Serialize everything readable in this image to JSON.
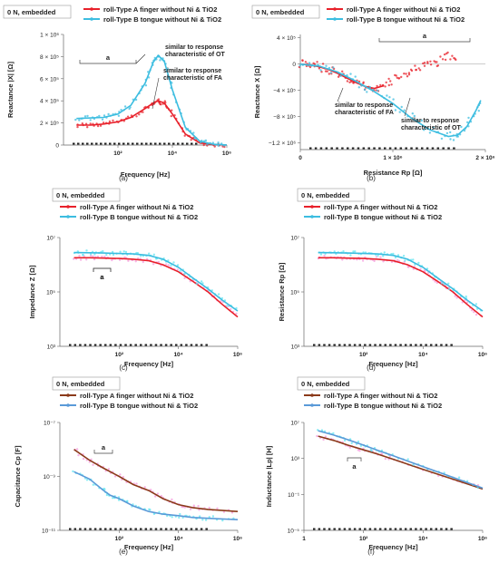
{
  "figure": {
    "panel_labels": [
      "(a)",
      "(b)",
      "(c)",
      "(d)",
      "(e)",
      "(f)"
    ],
    "embedded_tag": "0 N, embedded",
    "colors": {
      "type_a": "#e8202a",
      "type_b": "#3cbde0",
      "type_a_dark": "#8b3a1a",
      "type_b_dark": "#5a9ad8",
      "pink_cloud": "#f59adc",
      "cyan_cloud": "#63e6f0"
    }
  },
  "chart_data": [
    {
      "panel": "(a)",
      "type": "line",
      "scale": {
        "x": "log",
        "y": "linear"
      },
      "xlabel": "Frequency  [Hz]",
      "ylabel": "Reactance  |X|  [Ω]",
      "xticks": [
        {
          "v": 100,
          "label": "10²"
        },
        {
          "v": 10000,
          "label": "10⁴"
        },
        {
          "v": 1000000,
          "label": "10⁶"
        }
      ],
      "yticks": [
        {
          "v": 0,
          "label": "0"
        },
        {
          "v": 200000,
          "label": "2 × 10⁵"
        },
        {
          "v": 400000,
          "label": "4 × 10⁵"
        },
        {
          "v": 600000,
          "label": "6 × 10⁵"
        },
        {
          "v": 800000,
          "label": "8 × 10⁵"
        },
        {
          "v": 1000000,
          "label": "1 × 10⁶"
        }
      ],
      "xlim": [
        1,
        1000000
      ],
      "ylim": [
        0,
        1000000
      ],
      "legend": [
        "roll-Type A finger without Ni & TiO2",
        "roll-Type B tongue without Ni & TiO2"
      ],
      "series": [
        {
          "name": "roll-Type A finger without Ni & TiO2",
          "color": "#e8202a",
          "x": [
            3,
            10,
            30,
            100,
            300,
            1000,
            2000,
            3000,
            5000,
            10000,
            30000,
            100000,
            300000,
            1000000
          ],
          "y": [
            180000,
            180000,
            190000,
            210000,
            250000,
            330000,
            380000,
            400000,
            380000,
            280000,
            100000,
            20000,
            5000,
            1000
          ]
        },
        {
          "name": "roll-Type B tongue without Ni & TiO2",
          "color": "#3cbde0",
          "x": [
            3,
            10,
            30,
            100,
            300,
            1000,
            2000,
            3000,
            5000,
            10000,
            30000,
            100000,
            300000,
            1000000
          ],
          "y": [
            240000,
            245000,
            250000,
            280000,
            360000,
            560000,
            750000,
            810000,
            760000,
            500000,
            160000,
            35000,
            8000,
            1000
          ]
        }
      ],
      "annotations": [
        "a",
        "similar to response characteristic of OT",
        "similar to response characteristic  of FA"
      ]
    },
    {
      "panel": "(b)",
      "type": "scatter",
      "scale": {
        "x": "linear",
        "y": "linear"
      },
      "xlabel": "Resistance  Rp  [Ω]",
      "ylabel": "Reactance  X  [Ω]",
      "xticks": [
        {
          "v": 0,
          "label": "0"
        },
        {
          "v": 1000000,
          "label": "1 × 10⁶"
        },
        {
          "v": 2000000,
          "label": "2 × 10⁶"
        }
      ],
      "yticks": [
        {
          "v": 400000,
          "label": "4 × 10⁵"
        },
        {
          "v": 0,
          "label": "0"
        },
        {
          "v": -400000,
          "label": "−4 × 10⁵"
        },
        {
          "v": -800000,
          "label": "−8 × 10⁵"
        },
        {
          "v": -1200000,
          "label": "−1.2 × 10⁶"
        }
      ],
      "xlim": [
        0,
        2000000
      ],
      "ylim": [
        -1300000,
        450000
      ],
      "legend": [
        "roll-Type A finger without Ni & TiO2",
        "roll-Type B tongue without Ni & TiO2"
      ],
      "series": [
        {
          "name": "roll-Type A finger without Ni & TiO2",
          "color": "#e8202a",
          "x": [
            0,
            100000,
            200000,
            300000,
            400000,
            500000,
            600000,
            700000,
            800000,
            900000,
            1000000,
            1100000,
            1200000,
            1300000,
            1400000,
            1500000,
            1600000,
            1700000
          ],
          "y": [
            0,
            -10000,
            -40000,
            -80000,
            -140000,
            -210000,
            -280000,
            -340000,
            -370000,
            -330000,
            -250000,
            -170000,
            -100000,
            -60000,
            20000,
            40000,
            130000,
            80000
          ]
        },
        {
          "name": "roll-Type B tongue without Ni & TiO2",
          "color": "#3cbde0",
          "x": [
            0,
            200000,
            400000,
            600000,
            800000,
            1000000,
            1200000,
            1400000,
            1600000,
            1700000,
            1800000,
            1900000,
            1950000
          ],
          "y": [
            0,
            -30000,
            -120000,
            -260000,
            -420000,
            -600000,
            -820000,
            -1000000,
            -1100000,
            -1080000,
            -950000,
            -700000,
            -550000
          ]
        }
      ],
      "annotations": [
        "a",
        "similar to response characteristic  of FA",
        "similar to response characteristic  of OT"
      ]
    },
    {
      "panel": "(c)",
      "type": "line",
      "scale": {
        "x": "log",
        "y": "log"
      },
      "xlabel": "Frequency  [Hz]",
      "ylabel": "Impedance  Z  [Ω]",
      "xticks": [
        {
          "v": 100,
          "label": "10²"
        },
        {
          "v": 10000,
          "label": "10⁴"
        },
        {
          "v": 1000000,
          "label": "10⁶"
        }
      ],
      "yticks": [
        {
          "v": 1000,
          "label": "10³"
        },
        {
          "v": 100000,
          "label": "10⁵"
        },
        {
          "v": 10000000,
          "label": "10⁷"
        }
      ],
      "xlim": [
        1,
        1000000
      ],
      "ylim": [
        1000,
        10000000
      ],
      "legend": [
        "roll-Type A finger without Ni & TiO2",
        "roll-Type B tongue without Ni & TiO2"
      ],
      "series": [
        {
          "name": "roll-Type A finger without Ni & TiO2",
          "color": "#e8202a",
          "x": [
            3,
            10,
            30,
            100,
            300,
            1000,
            3000,
            10000,
            30000,
            100000,
            300000,
            1000000
          ],
          "y": [
            1800000,
            1800000,
            1750000,
            1700000,
            1600000,
            1400000,
            1000000,
            550000,
            250000,
            100000,
            35000,
            12000
          ]
        },
        {
          "name": "roll-Type B tongue without Ni & TiO2",
          "color": "#3cbde0",
          "x": [
            3,
            10,
            30,
            100,
            300,
            1000,
            3000,
            10000,
            30000,
            100000,
            300000,
            1000000
          ],
          "y": [
            2800000,
            2750000,
            2700000,
            2600000,
            2500000,
            2200000,
            1600000,
            800000,
            330000,
            130000,
            50000,
            20000
          ]
        }
      ],
      "annotations": [
        "a"
      ]
    },
    {
      "panel": "(d)",
      "type": "line",
      "scale": {
        "x": "log",
        "y": "log"
      },
      "xlabel": "Frequency  [Hz]",
      "ylabel": "Resistance  Rp  [Ω]",
      "xticks": [
        {
          "v": 100,
          "label": "10²"
        },
        {
          "v": 10000,
          "label": "10⁴"
        },
        {
          "v": 1000000,
          "label": "10⁶"
        }
      ],
      "yticks": [
        {
          "v": 1000,
          "label": "10³"
        },
        {
          "v": 100000,
          "label": "10⁵"
        },
        {
          "v": 10000000,
          "label": "10⁷"
        }
      ],
      "xlim": [
        1,
        1000000
      ],
      "ylim": [
        1000,
        10000000
      ],
      "legend": [
        "roll-Type A finger without Ni & TiO2",
        "roll-Type B tongue without Ni & TiO2"
      ],
      "series": [
        {
          "name": "roll-Type A finger without Ni & TiO2",
          "color": "#e8202a",
          "x": [
            3,
            10,
            30,
            100,
            300,
            1000,
            3000,
            10000,
            30000,
            100000,
            300000,
            1000000
          ],
          "y": [
            1800000,
            1800000,
            1750000,
            1700000,
            1600000,
            1400000,
            1000000,
            550000,
            250000,
            100000,
            35000,
            12000
          ]
        },
        {
          "name": "roll-Type B tongue without Ni & TiO2",
          "color": "#3cbde0",
          "x": [
            3,
            10,
            30,
            100,
            300,
            1000,
            3000,
            10000,
            30000,
            100000,
            300000,
            1000000
          ],
          "y": [
            2800000,
            2750000,
            2700000,
            2600000,
            2500000,
            2200000,
            1600000,
            800000,
            330000,
            130000,
            50000,
            20000
          ]
        }
      ],
      "annotations": [
        "a"
      ]
    },
    {
      "panel": "(e)",
      "type": "line",
      "scale": {
        "x": "log",
        "y": "log"
      },
      "xlabel": "Frequency  [Hz]",
      "ylabel": "Capacitance  Cp  [F]",
      "xticks": [
        {
          "v": 100,
          "label": "10²"
        },
        {
          "v": 10000,
          "label": "10⁴"
        },
        {
          "v": 1000000,
          "label": "10⁶"
        }
      ],
      "yticks": [
        {
          "v": 1e-11,
          "label": "10⁻¹¹"
        },
        {
          "v": 1e-09,
          "label": "10⁻⁹"
        },
        {
          "v": 1e-07,
          "label": "10⁻⁷"
        }
      ],
      "xlim": [
        1,
        1000000
      ],
      "ylim": [
        1e-11,
        1e-07
      ],
      "legend": [
        "roll-Type A finger without Ni & TiO2",
        "roll-Type B tongue without Ni & TiO2"
      ],
      "series": [
        {
          "name": "roll-Type A finger without Ni & TiO2",
          "color": "#8b3a1a",
          "x": [
            3,
            10,
            30,
            100,
            300,
            1000,
            3000,
            10000,
            30000,
            100000,
            1000000
          ],
          "y": [
            1e-08,
            4e-09,
            2e-09,
            1e-09,
            5e-10,
            3e-10,
            1.5e-10,
            9e-11,
            7e-11,
            6e-11,
            5e-11
          ]
        },
        {
          "name": "roll-Type B tongue without Ni & TiO2",
          "color": "#5a9ad8",
          "x": [
            3,
            10,
            30,
            50,
            100,
            300,
            1000,
            3000,
            10000,
            30000,
            100000,
            1000000
          ],
          "y": [
            1.5e-09,
            8e-10,
            3e-10,
            2e-10,
            1.5e-10,
            8e-11,
            5e-11,
            4e-11,
            3.5e-11,
            3e-11,
            2.8e-11,
            2.5e-11
          ]
        }
      ],
      "annotations": [
        "a"
      ]
    },
    {
      "panel": "(f)",
      "type": "line",
      "scale": {
        "x": "log",
        "y": "log"
      },
      "xlabel": "Frequency  [Hz]",
      "ylabel": "Inductance  |Lp|  [H]",
      "xticks": [
        {
          "v": 1,
          "label": "1"
        },
        {
          "v": 100,
          "label": "10²"
        },
        {
          "v": 10000,
          "label": "10⁴"
        },
        {
          "v": 1000000,
          "label": "10⁶"
        }
      ],
      "yticks": [
        {
          "v": 1e-05,
          "label": "10⁻⁵"
        },
        {
          "v": 0.1,
          "label": "10⁻¹"
        },
        {
          "v": 1000,
          "label": "10³"
        },
        {
          "v": 10000000,
          "label": "10⁷"
        }
      ],
      "xlim": [
        1,
        1000000
      ],
      "ylim": [
        1e-05,
        10000000
      ],
      "legend": [
        "roll-Type A finger without Ni & TiO2",
        "roll-Type B tongue without Ni & TiO2"
      ],
      "series": [
        {
          "name": "roll-Type A finger without Ni & TiO2",
          "color": "#8b3a1a",
          "x": [
            3,
            10,
            30,
            100,
            300,
            1000,
            10000,
            100000,
            1000000
          ],
          "y": [
            300000,
            100000,
            30000,
            9000,
            3000,
            800,
            60,
            5,
            0.4
          ]
        },
        {
          "name": "roll-Type B tongue without Ni & TiO2",
          "color": "#5a9ad8",
          "x": [
            3,
            10,
            30,
            100,
            300,
            1000,
            10000,
            100000,
            1000000
          ],
          "y": [
            1200000,
            400000,
            120000,
            30000,
            8000,
            2000,
            120,
            8,
            0.5
          ]
        }
      ],
      "annotations": [
        "a"
      ]
    }
  ]
}
